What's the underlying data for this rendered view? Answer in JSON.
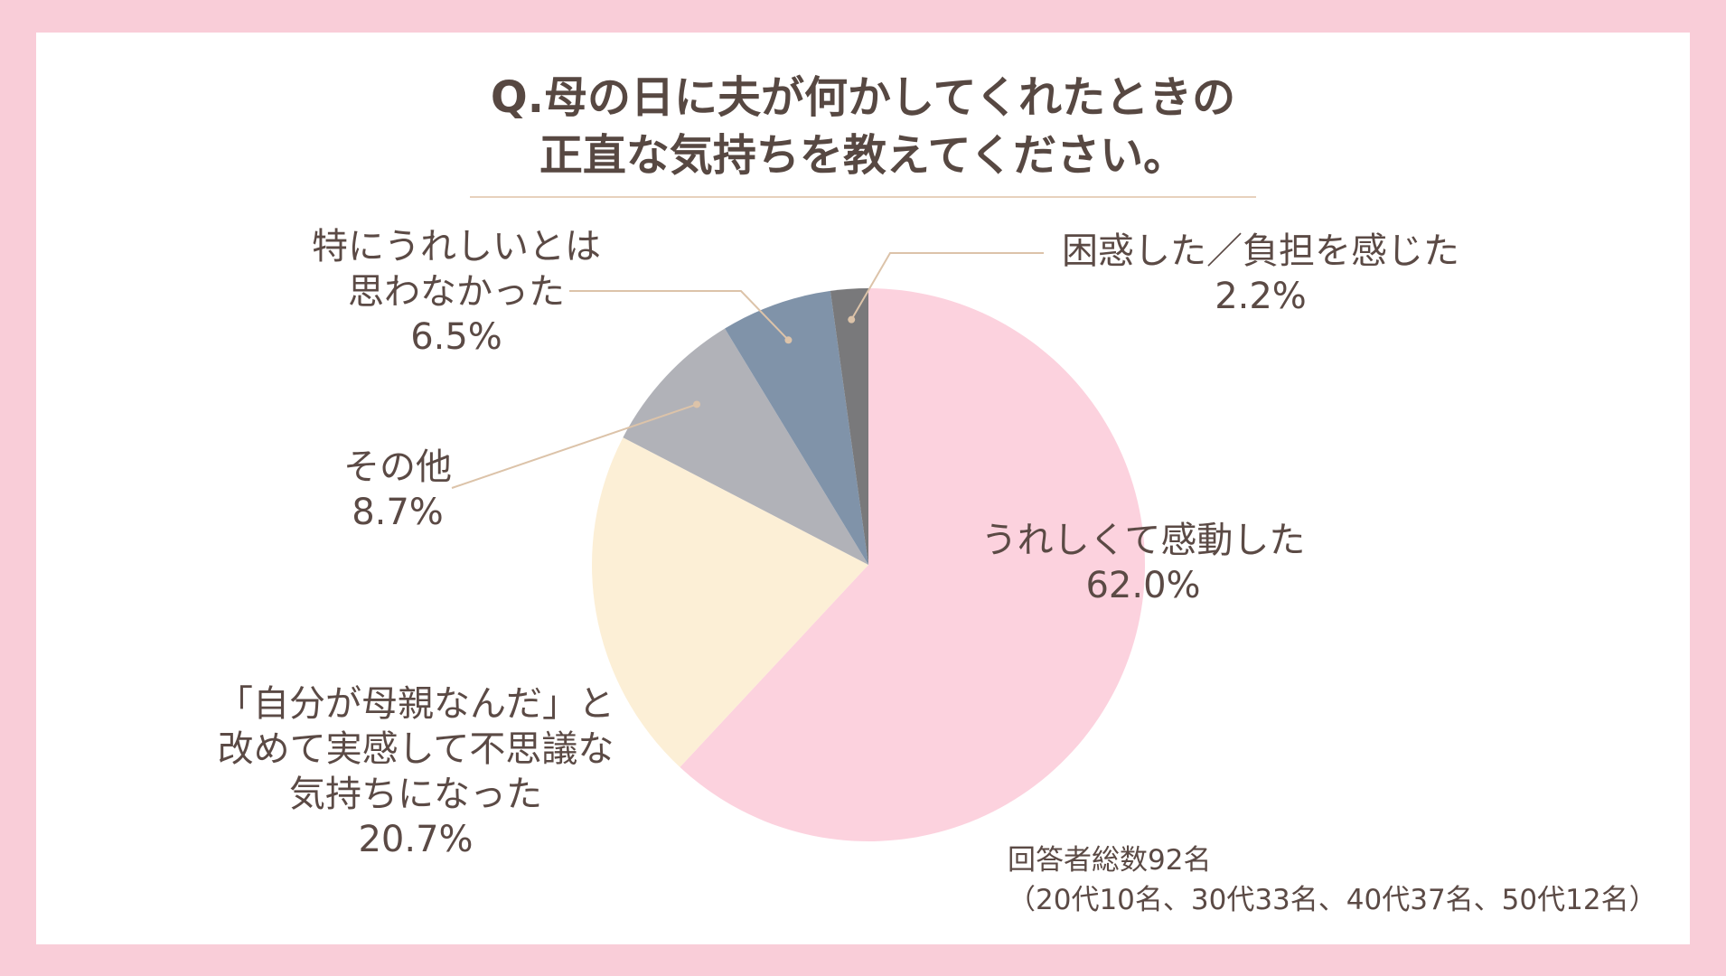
{
  "chart_data": {
    "type": "pie",
    "title_lines": [
      "Q.母の日に夫が何かしてくれたときの",
      "正直な気持ちを教えてください。"
    ],
    "slices": [
      {
        "label_lines": [
          "うれしくて感動した"
        ],
        "pct_text": "62.0%",
        "value": 62.0,
        "color": "#fcd2de"
      },
      {
        "label_lines": [
          "「自分が母親なんだ」と",
          "改めて実感して不思議な",
          "気持ちになった"
        ],
        "pct_text": "20.7%",
        "value": 20.7,
        "color": "#fcefd6"
      },
      {
        "label_lines": [
          "その他"
        ],
        "pct_text": "8.7%",
        "value": 8.7,
        "color": "#b1b2b8"
      },
      {
        "label_lines": [
          "特にうれしいとは",
          "思わなかった"
        ],
        "pct_text": "6.5%",
        "value": 6.5,
        "color": "#8093a9"
      },
      {
        "label_lines": [
          "困惑した／負担を感じた"
        ],
        "pct_text": "2.2%",
        "value": 2.2,
        "color": "#79797b"
      }
    ],
    "start": "12 o'clock",
    "direction": "clockwise",
    "legend": "none (labels beside slices)"
  },
  "footnote": {
    "line1": "回答者総数92名",
    "line2": "（20代10名、30代33名、40代37名、50代12名）"
  },
  "colors": {
    "frame": "#f9cdd8",
    "card": "#ffffff",
    "leader_line": "#dcc3a9",
    "text": "#5b4a45"
  }
}
